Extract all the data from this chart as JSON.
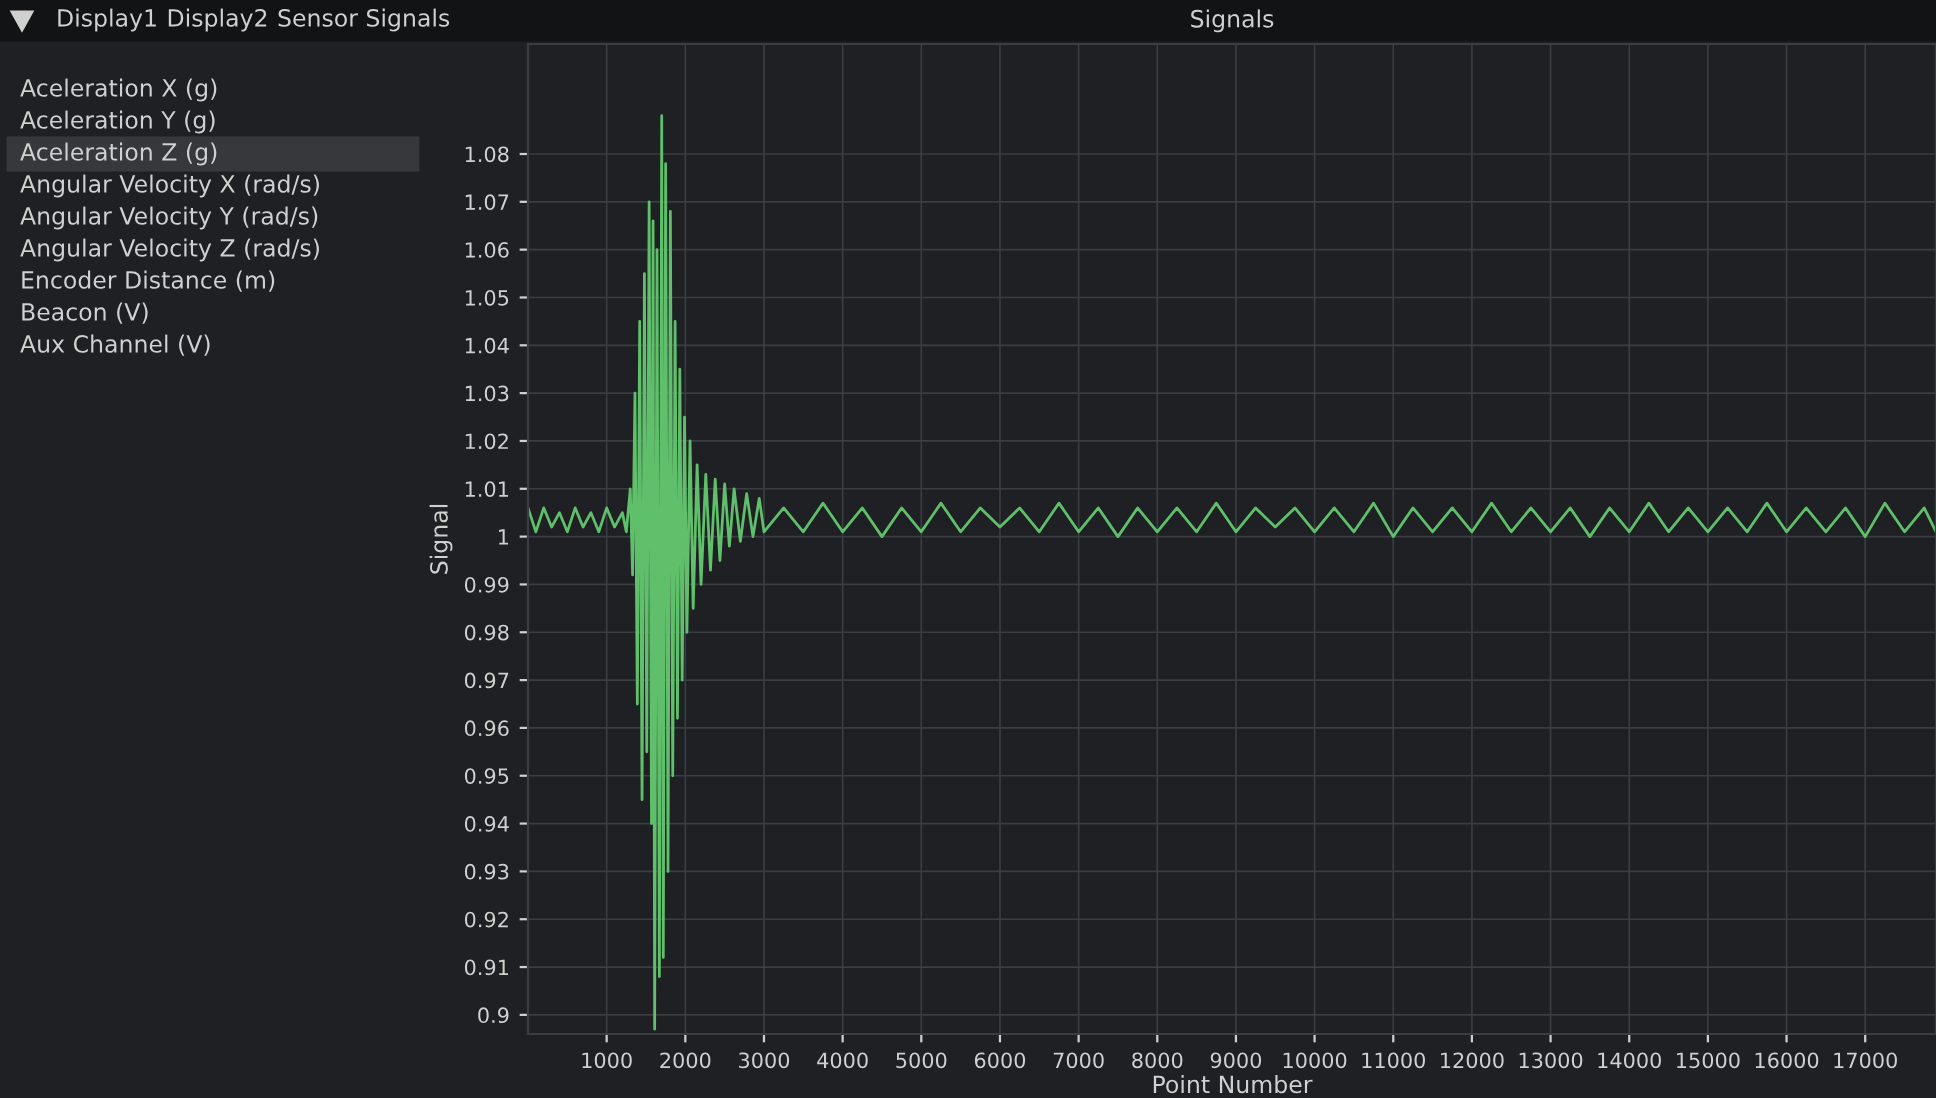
{
  "chart_data": {
    "type": "line",
    "title": "Signals",
    "xlabel": "Point Number",
    "ylabel": "Signal",
    "annotations": [
      "Display1",
      "Display2",
      "Sensor Signals",
      "Aceleration X (g)",
      "Aceleration Y (g)",
      "Aceleration Z (g)",
      "Angular Velocity X (rad/s)",
      "Angular Velocity Y (rad/s)",
      "Angular Velocity Z (rad/s)",
      "Encoder Distance (m)",
      "Beacon (V)",
      "Aux Channel (V)"
    ],
    "xlim": [
      0,
      17900
    ],
    "ylim": [
      0.896,
      1.103
    ],
    "xticks": [
      1000,
      2000,
      3000,
      4000,
      5000,
      6000,
      7000,
      8000,
      9000,
      10000,
      11000,
      12000,
      13000,
      14000,
      15000,
      16000,
      17000
    ],
    "yticks": [
      0.9,
      0.91,
      0.92,
      0.93,
      0.94,
      0.95,
      0.96,
      0.97,
      0.98,
      0.99,
      {
        "value": 1,
        "label": "1"
      },
      1.01,
      1.02,
      1.03,
      1.04,
      1.05,
      1.06,
      1.07,
      1.08
    ],
    "grid": true,
    "marker": "none",
    "line_style": "solid",
    "series": [
      {
        "color": "#5fbf6a",
        "x": [
          0,
          100,
          200,
          300,
          400,
          500,
          600,
          700,
          800,
          900,
          1000,
          1100,
          1200,
          1250,
          1300,
          1330,
          1360,
          1390,
          1420,
          1450,
          1480,
          1510,
          1540,
          1570,
          1590,
          1610,
          1640,
          1670,
          1700,
          1720,
          1750,
          1780,
          1810,
          1840,
          1870,
          1900,
          1930,
          1960,
          1990,
          2020,
          2060,
          2100,
          2150,
          2200,
          2260,
          2320,
          2380,
          2440,
          2500,
          2560,
          2620,
          2700,
          2780,
          2860,
          2940,
          3000,
          3250,
          3500,
          3750,
          4000,
          4250,
          4500,
          4750,
          5000,
          5250,
          5500,
          5750,
          6000,
          6250,
          6500,
          6750,
          7000,
          7250,
          7500,
          7750,
          8000,
          8250,
          8500,
          8750,
          9000,
          9250,
          9500,
          9750,
          10000,
          10250,
          10500,
          10750,
          11000,
          11250,
          11500,
          11750,
          12000,
          12250,
          12500,
          12750,
          13000,
          13250,
          13500,
          13750,
          14000,
          14250,
          14500,
          14750,
          15000,
          15250,
          15500,
          15750,
          16000,
          16250,
          16500,
          16750,
          17000,
          17250,
          17500,
          17750,
          17900
        ],
        "values": [
          1.006,
          1.001,
          1.006,
          1.002,
          1.005,
          1.001,
          1.006,
          1.002,
          1.005,
          1.001,
          1.006,
          1.002,
          1.005,
          1.001,
          1.01,
          0.992,
          1.03,
          0.965,
          1.045,
          0.945,
          1.055,
          0.955,
          1.07,
          0.94,
          1.066,
          0.897,
          1.06,
          0.908,
          1.088,
          0.912,
          1.078,
          0.93,
          1.068,
          0.95,
          1.045,
          0.962,
          1.035,
          0.97,
          1.025,
          0.98,
          1.02,
          0.985,
          1.015,
          0.99,
          1.013,
          0.993,
          1.012,
          0.995,
          1.011,
          0.998,
          1.01,
          0.999,
          1.009,
          1.0,
          1.008,
          1.001,
          1.006,
          1.001,
          1.007,
          1.001,
          1.006,
          1.0,
          1.006,
          1.001,
          1.007,
          1.001,
          1.006,
          1.002,
          1.006,
          1.001,
          1.007,
          1.001,
          1.006,
          1.0,
          1.006,
          1.001,
          1.006,
          1.001,
          1.007,
          1.001,
          1.006,
          1.002,
          1.006,
          1.001,
          1.006,
          1.001,
          1.007,
          1.0,
          1.006,
          1.001,
          1.006,
          1.001,
          1.007,
          1.001,
          1.006,
          1.001,
          1.006,
          1.0,
          1.006,
          1.001,
          1.007,
          1.001,
          1.006,
          1.001,
          1.006,
          1.001,
          1.007,
          1.001,
          1.006,
          1.001,
          1.006,
          1.0,
          1.007,
          1.001,
          1.006,
          1.001
        ]
      }
    ]
  }
}
